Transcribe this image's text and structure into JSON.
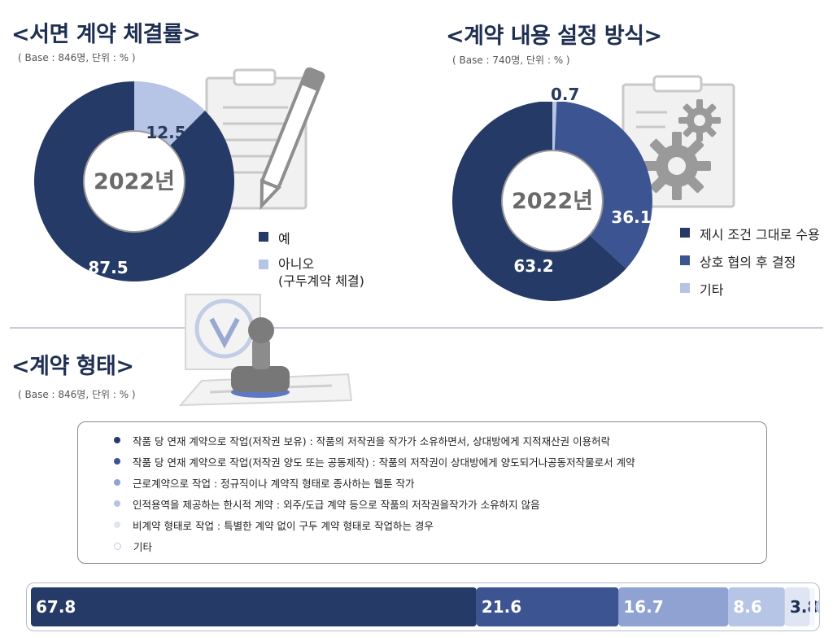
{
  "colors": {
    "navy": "#263a67",
    "blue": "#3d5492",
    "mid_blue": "#8fa2d2",
    "light_blue": "#b6c4e5",
    "pale_blue": "#dfe5f3",
    "very_pale_blue": "#f4f6fb",
    "title_color": "#1f2f52"
  },
  "section1": {
    "title": "<서면 계약 체결률>",
    "base": "( Base : 846명, 단위 : % )",
    "center": "2022년",
    "legend": [
      {
        "label": "예",
        "color": "#263a67"
      },
      {
        "label": "아니오",
        "sub": "(구두계약 체결)",
        "color": "#b6c4e5"
      }
    ]
  },
  "section2": {
    "title": "<계약 내용 설정 방식>",
    "base": "( Base : 740명, 단위 : % )",
    "center": "2022년",
    "legend": [
      {
        "label": "제시 조건 그대로 수용",
        "color": "#263a67"
      },
      {
        "label": "상호 협의 후 결정",
        "color": "#3d5492"
      },
      {
        "label": "기타",
        "color": "#b6c4e5"
      }
    ]
  },
  "section3": {
    "title": "<계약 형태>",
    "base": "( Base : 846명, 단위 : % )",
    "legend": [
      {
        "text": "작품 당 연재 계약으로 작업(저작권 보유) : 작품의 저작권을 작가가 소유하면서, 상대방에게 지적재산권 이용허락",
        "color": "#263a67"
      },
      {
        "text": "작품 당 연재 계약으로 작업(저작권 양도 또는 공동제작) : 작품의 저작권이 상대방에게 양도되거나공동저작물로서 계약",
        "color": "#3d5492"
      },
      {
        "text": "근로계약으로 작업 : 정규직이나 계약직 형태로 종사하는 웹툰 작가",
        "color": "#8fa2d2"
      },
      {
        "text": "인적용역을 제공하는 한시적 계약 : 외주/도급 계약 등으로 작품의 저작권을작가가 소유하지 않음",
        "color": "#b6c4e5"
      },
      {
        "text": "비계약 형태로 작업 : 특별한 계약 없이 구두 계약 형태로 작업하는 경우",
        "color": "#dfe5f3"
      },
      {
        "text": "기타",
        "color": "#f4f6fb"
      }
    ]
  },
  "chart_data": [
    {
      "type": "pie",
      "title": "<서면 계약 체결률>",
      "categories": [
        "예",
        "아니오 (구두계약 체결)"
      ],
      "values": [
        87.5,
        12.5
      ],
      "labels": [
        "87.5",
        "12.5"
      ],
      "center_text": "2022년",
      "colors": [
        "#263a67",
        "#b6c4e5"
      ],
      "legend": "right"
    },
    {
      "type": "pie",
      "title": "<계약 내용 설정 방식>",
      "categories": [
        "제시 조건 그대로 수용",
        "상호 협의 후 결정",
        "기타"
      ],
      "values": [
        63.2,
        36.1,
        0.7
      ],
      "labels": [
        "63.2",
        "36.1",
        "0.7"
      ],
      "center_text": "2022년",
      "colors": [
        "#263a67",
        "#3d5492",
        "#b6c4e5"
      ],
      "legend": "right"
    },
    {
      "type": "bar",
      "orientation": "horizontal-stacked",
      "title": "<계약 형태>",
      "categories": [
        "작품 당 연재 계약으로 작업(저작권 보유)",
        "작품 당 연재 계약으로 작업(저작권 양도 또는 공동제작)",
        "근로계약으로 작업",
        "인적용역을 제공하는 한시적 계약",
        "비계약 형태로 작업",
        "기타"
      ],
      "values": [
        67.8,
        21.6,
        16.7,
        8.6,
        3.8,
        0.8
      ],
      "labels": [
        "67.8",
        "21.6",
        "16.7",
        "8.6",
        "3.8",
        "0.8"
      ],
      "colors": [
        "#263a67",
        "#3d5492",
        "#8fa2d2",
        "#b6c4e5",
        "#dfe5f3",
        "#f4f6fb"
      ],
      "label_colors": [
        "#ffffff",
        "#ffffff",
        "#ffffff",
        "#ffffff",
        "#1f2f52",
        "#b6c4e5"
      ]
    }
  ]
}
